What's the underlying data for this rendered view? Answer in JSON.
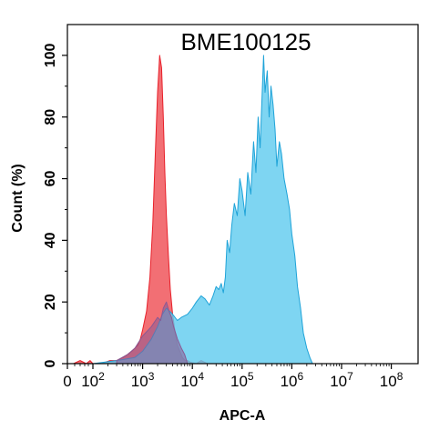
{
  "chart_data": {
    "type": "area",
    "title": "BME100125",
    "xlabel": "APC-A",
    "ylabel": "Count  (%)",
    "x_scale": "log (biexponential near 0)",
    "xlim": [
      0,
      100000000
    ],
    "ylim": [
      0,
      110
    ],
    "x_ticks": [
      {
        "label": "0",
        "sup": ""
      },
      {
        "label": "10",
        "sup": "2"
      },
      {
        "label": "10",
        "sup": "3"
      },
      {
        "label": "10",
        "sup": "4"
      },
      {
        "label": "10",
        "sup": "5"
      },
      {
        "label": "10",
        "sup": "6"
      },
      {
        "label": "10",
        "sup": "7"
      },
      {
        "label": "10",
        "sup": "8"
      }
    ],
    "y_ticks": [
      "0",
      "20",
      "40",
      "60",
      "80",
      "100"
    ],
    "grid": false,
    "legend": "none",
    "series": [
      {
        "fill": "#f0565c",
        "stroke": "#e8202a",
        "opacity": 0.85,
        "x": [
          3,
          10,
          30,
          60,
          100,
          150,
          220,
          300,
          400,
          500,
          600,
          700,
          800,
          900,
          1000,
          1200,
          1400,
          1600,
          1800,
          2000,
          2200,
          2400,
          2600,
          2800,
          3000,
          3300,
          3600,
          4000,
          4500,
          5000,
          5600,
          6300,
          7100,
          8000,
          9000,
          10000,
          12000,
          15000,
          20000
        ],
        "y": [
          0,
          1,
          0,
          1,
          0,
          0,
          1,
          1,
          2,
          3,
          4,
          5,
          6,
          8,
          11,
          17,
          28,
          45,
          68,
          88,
          100,
          96,
          80,
          62,
          48,
          35,
          24,
          16,
          10,
          6,
          4,
          2,
          1,
          1,
          0.5,
          0.3,
          0,
          1,
          0
        ]
      },
      {
        "fill": "#5ecbef",
        "stroke": "#1fa3d8",
        "opacity": 0.8,
        "x": [
          3,
          100,
          300,
          700,
          1000,
          1500,
          2000,
          2500,
          3000,
          3500,
          4000,
          5000,
          6000,
          8000,
          10000,
          12000,
          15000,
          18000,
          22000,
          26000,
          30000,
          34000,
          38000,
          42000,
          46000,
          50000,
          56000,
          62000,
          70000,
          80000,
          90000,
          100000,
          115000,
          130000,
          150000,
          170000,
          190000,
          210000,
          230000,
          250000,
          270000,
          290000,
          320000,
          350000,
          380000,
          420000,
          460000,
          500000,
          560000,
          620000,
          700000,
          800000,
          900000,
          1000000,
          1150000,
          1300000,
          1500000,
          1700000,
          2000000,
          2300000,
          2600000
        ],
        "y": [
          0,
          0,
          1,
          2,
          4,
          8,
          12,
          16,
          18,
          17,
          16,
          14,
          15,
          16,
          18,
          20,
          22,
          21,
          19,
          22,
          25,
          24,
          26,
          23,
          28,
          40,
          36,
          45,
          52,
          48,
          60,
          56,
          48,
          62,
          55,
          72,
          62,
          80,
          70,
          85,
          100,
          88,
          95,
          80,
          90,
          84,
          76,
          64,
          72,
          68,
          60,
          55,
          50,
          42,
          35,
          25,
          18,
          10,
          5,
          2,
          0
        ]
      },
      {
        "fill": "#8a5a94",
        "stroke": "#8a5a94",
        "opacity": 0.55,
        "x": [
          300,
          500,
          700,
          1000,
          1500,
          2000,
          2300,
          2600,
          3000,
          3400,
          3800,
          4200,
          5000,
          6000,
          7000,
          8000
        ],
        "y": [
          1,
          3,
          5,
          9,
          12,
          15,
          14,
          18,
          20,
          17,
          15,
          12,
          8,
          5,
          3,
          0
        ]
      }
    ]
  }
}
